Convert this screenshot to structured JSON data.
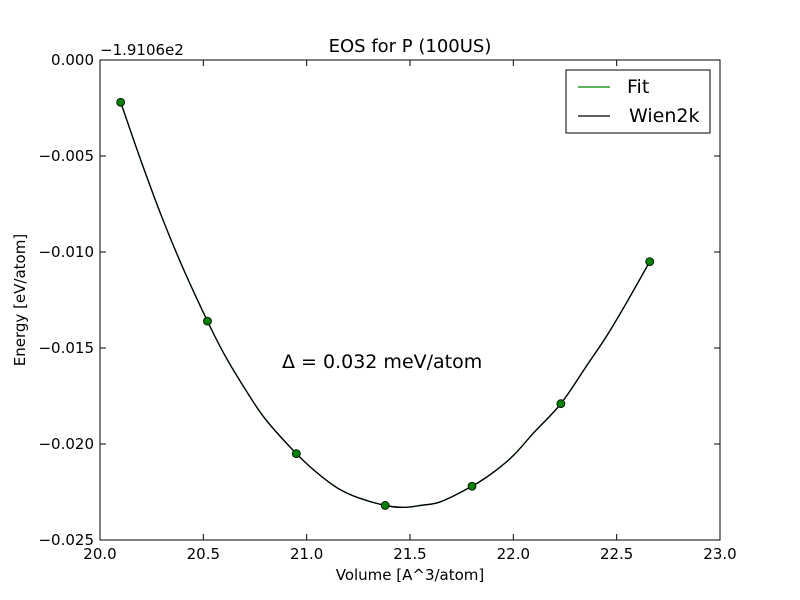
{
  "chart_data": {
    "type": "line",
    "title": "EOS for P (100US)",
    "xlabel": "Volume [A^3/atom]",
    "ylabel": "Energy [eV/atom]",
    "offset_label": "−1.9106e2",
    "xlim": [
      20.0,
      23.0
    ],
    "ylim": [
      -0.025,
      0.0
    ],
    "x_ticks": [
      20.0,
      20.5,
      21.0,
      21.5,
      22.0,
      22.5,
      23.0
    ],
    "x_tick_labels": [
      "20.0",
      "20.5",
      "21.0",
      "21.5",
      "22.0",
      "22.5",
      "23.0"
    ],
    "y_ticks": [
      0.0,
      -0.005,
      -0.01,
      -0.015,
      -0.02,
      -0.025
    ],
    "y_tick_labels": [
      "0.000",
      "−0.005",
      "−0.010",
      "−0.015",
      "−0.020",
      "−0.025"
    ],
    "grid": false,
    "legend_position": "top-right",
    "annotation": "Δ = 0.032 meV/atom",
    "series": [
      {
        "name": "Fit",
        "kind": "line+markers",
        "color": "#008000",
        "markers": [
          {
            "x": 20.1,
            "y": -0.0022
          },
          {
            "x": 20.52,
            "y": -0.0136
          },
          {
            "x": 20.95,
            "y": -0.0205
          },
          {
            "x": 21.38,
            "y": -0.0232
          },
          {
            "x": 21.8,
            "y": -0.0222
          },
          {
            "x": 22.23,
            "y": -0.0179
          },
          {
            "x": 22.66,
            "y": -0.0105
          }
        ],
        "curve": [
          {
            "x": 20.1,
            "y": -0.0022
          },
          {
            "x": 20.2,
            "y": -0.0053
          },
          {
            "x": 20.3,
            "y": -0.0082
          },
          {
            "x": 20.4,
            "y": -0.0108
          },
          {
            "x": 20.52,
            "y": -0.0136
          },
          {
            "x": 20.6,
            "y": -0.0153
          },
          {
            "x": 20.7,
            "y": -0.0171
          },
          {
            "x": 20.8,
            "y": -0.0187
          },
          {
            "x": 20.95,
            "y": -0.0205
          },
          {
            "x": 21.05,
            "y": -0.0215
          },
          {
            "x": 21.15,
            "y": -0.0223
          },
          {
            "x": 21.25,
            "y": -0.0228
          },
          {
            "x": 21.38,
            "y": -0.0232
          },
          {
            "x": 21.47,
            "y": -0.0233
          },
          {
            "x": 21.55,
            "y": -0.0232
          },
          {
            "x": 21.65,
            "y": -0.023
          },
          {
            "x": 21.8,
            "y": -0.0222
          },
          {
            "x": 21.9,
            "y": -0.0215
          },
          {
            "x": 22.0,
            "y": -0.0206
          },
          {
            "x": 22.1,
            "y": -0.0194
          },
          {
            "x": 22.23,
            "y": -0.0179
          },
          {
            "x": 22.35,
            "y": -0.016
          },
          {
            "x": 22.45,
            "y": -0.0144
          },
          {
            "x": 22.55,
            "y": -0.0126
          },
          {
            "x": 22.66,
            "y": -0.0105
          }
        ]
      },
      {
        "name": "Wien2k",
        "kind": "line",
        "color": "#000000",
        "curve": [
          {
            "x": 20.1,
            "y": -0.0022
          },
          {
            "x": 20.2,
            "y": -0.0053
          },
          {
            "x": 20.3,
            "y": -0.0082
          },
          {
            "x": 20.4,
            "y": -0.0108
          },
          {
            "x": 20.52,
            "y": -0.0136
          },
          {
            "x": 20.6,
            "y": -0.0153
          },
          {
            "x": 20.7,
            "y": -0.0171
          },
          {
            "x": 20.8,
            "y": -0.0187
          },
          {
            "x": 20.95,
            "y": -0.0205
          },
          {
            "x": 21.05,
            "y": -0.0215
          },
          {
            "x": 21.15,
            "y": -0.0223
          },
          {
            "x": 21.25,
            "y": -0.0228
          },
          {
            "x": 21.38,
            "y": -0.0232
          },
          {
            "x": 21.47,
            "y": -0.0233
          },
          {
            "x": 21.55,
            "y": -0.0232
          },
          {
            "x": 21.65,
            "y": -0.023
          },
          {
            "x": 21.8,
            "y": -0.0222
          },
          {
            "x": 21.9,
            "y": -0.0215
          },
          {
            "x": 22.0,
            "y": -0.0206
          },
          {
            "x": 22.1,
            "y": -0.0194
          },
          {
            "x": 22.23,
            "y": -0.0179
          },
          {
            "x": 22.35,
            "y": -0.016
          },
          {
            "x": 22.45,
            "y": -0.0144
          },
          {
            "x": 22.55,
            "y": -0.0126
          },
          {
            "x": 22.66,
            "y": -0.0105
          }
        ]
      }
    ]
  }
}
